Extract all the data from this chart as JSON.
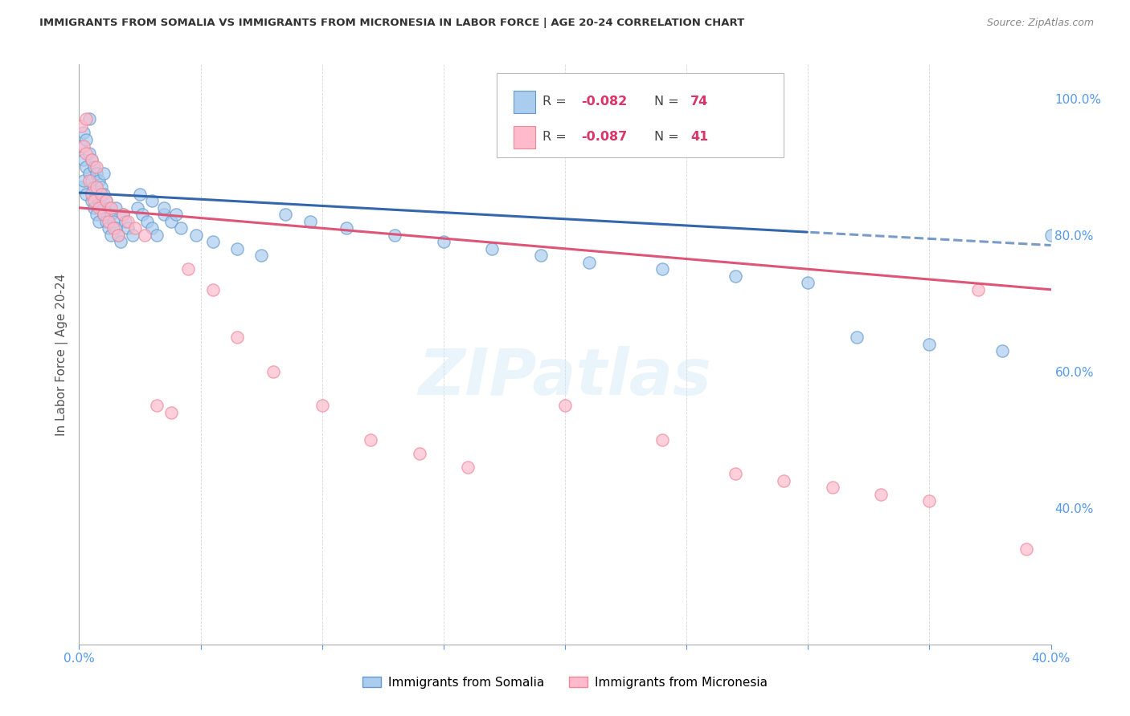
{
  "title": "IMMIGRANTS FROM SOMALIA VS IMMIGRANTS FROM MICRONESIA IN LABOR FORCE | AGE 20-24 CORRELATION CHART",
  "source": "Source: ZipAtlas.com",
  "ylabel": "In Labor Force | Age 20-24",
  "legend_label_blue": "Immigrants from Somalia",
  "legend_label_pink": "Immigrants from Micronesia",
  "watermark": "ZIPatlas",
  "blue_scatter_color": "#aaccee",
  "blue_scatter_edge": "#6699cc",
  "pink_scatter_color": "#ffbbcc",
  "pink_scatter_edge": "#ee8899",
  "blue_line_color": "#3366aa",
  "pink_line_color": "#dd5577",
  "background_color": "#ffffff",
  "grid_color": "#cccccc",
  "title_color": "#333333",
  "right_axis_color": "#5599ee",
  "xlim": [
    0.0,
    0.4
  ],
  "ylim": [
    0.2,
    1.05
  ],
  "x_ticks": [
    0.0,
    0.05,
    0.1,
    0.15,
    0.2,
    0.25,
    0.3,
    0.35,
    0.4
  ],
  "y_ticks_right": [
    1.0,
    0.8,
    0.6,
    0.4
  ],
  "blue_R": "-0.082",
  "blue_N": "74",
  "pink_R": "-0.087",
  "pink_N": "41",
  "somalia_x": [
    0.001,
    0.001,
    0.002,
    0.002,
    0.002,
    0.003,
    0.003,
    0.003,
    0.004,
    0.004,
    0.004,
    0.005,
    0.005,
    0.005,
    0.006,
    0.006,
    0.006,
    0.007,
    0.007,
    0.007,
    0.008,
    0.008,
    0.008,
    0.009,
    0.009,
    0.01,
    0.01,
    0.01,
    0.011,
    0.011,
    0.012,
    0.012,
    0.013,
    0.013,
    0.014,
    0.015,
    0.015,
    0.016,
    0.017,
    0.018,
    0.019,
    0.02,
    0.022,
    0.024,
    0.026,
    0.028,
    0.03,
    0.032,
    0.035,
    0.038,
    0.042,
    0.048,
    0.055,
    0.065,
    0.075,
    0.085,
    0.095,
    0.11,
    0.13,
    0.15,
    0.17,
    0.19,
    0.21,
    0.24,
    0.27,
    0.3,
    0.32,
    0.35,
    0.38,
    0.4,
    0.025,
    0.03,
    0.035,
    0.04
  ],
  "somalia_y": [
    0.87,
    0.93,
    0.91,
    0.95,
    0.88,
    0.9,
    0.94,
    0.86,
    0.89,
    0.92,
    0.97,
    0.85,
    0.88,
    0.91,
    0.84,
    0.87,
    0.9,
    0.83,
    0.86,
    0.89,
    0.82,
    0.85,
    0.88,
    0.84,
    0.87,
    0.83,
    0.86,
    0.89,
    0.82,
    0.85,
    0.81,
    0.84,
    0.8,
    0.83,
    0.82,
    0.81,
    0.84,
    0.8,
    0.79,
    0.83,
    0.82,
    0.81,
    0.8,
    0.84,
    0.83,
    0.82,
    0.81,
    0.8,
    0.83,
    0.82,
    0.81,
    0.8,
    0.79,
    0.78,
    0.77,
    0.83,
    0.82,
    0.81,
    0.8,
    0.79,
    0.78,
    0.77,
    0.76,
    0.75,
    0.74,
    0.73,
    0.65,
    0.64,
    0.63,
    0.8,
    0.86,
    0.85,
    0.84,
    0.83
  ],
  "micronesia_x": [
    0.001,
    0.002,
    0.003,
    0.003,
    0.004,
    0.005,
    0.005,
    0.006,
    0.007,
    0.007,
    0.008,
    0.009,
    0.01,
    0.011,
    0.012,
    0.013,
    0.014,
    0.016,
    0.018,
    0.02,
    0.023,
    0.027,
    0.032,
    0.038,
    0.045,
    0.055,
    0.065,
    0.08,
    0.1,
    0.12,
    0.14,
    0.16,
    0.2,
    0.24,
    0.27,
    0.29,
    0.31,
    0.33,
    0.35,
    0.37,
    0.39
  ],
  "micronesia_y": [
    0.96,
    0.93,
    0.92,
    0.97,
    0.88,
    0.86,
    0.91,
    0.85,
    0.87,
    0.9,
    0.84,
    0.86,
    0.83,
    0.85,
    0.82,
    0.84,
    0.81,
    0.8,
    0.83,
    0.82,
    0.81,
    0.8,
    0.55,
    0.54,
    0.75,
    0.72,
    0.65,
    0.6,
    0.55,
    0.5,
    0.48,
    0.46,
    0.55,
    0.5,
    0.45,
    0.44,
    0.43,
    0.42,
    0.41,
    0.72,
    0.34
  ]
}
